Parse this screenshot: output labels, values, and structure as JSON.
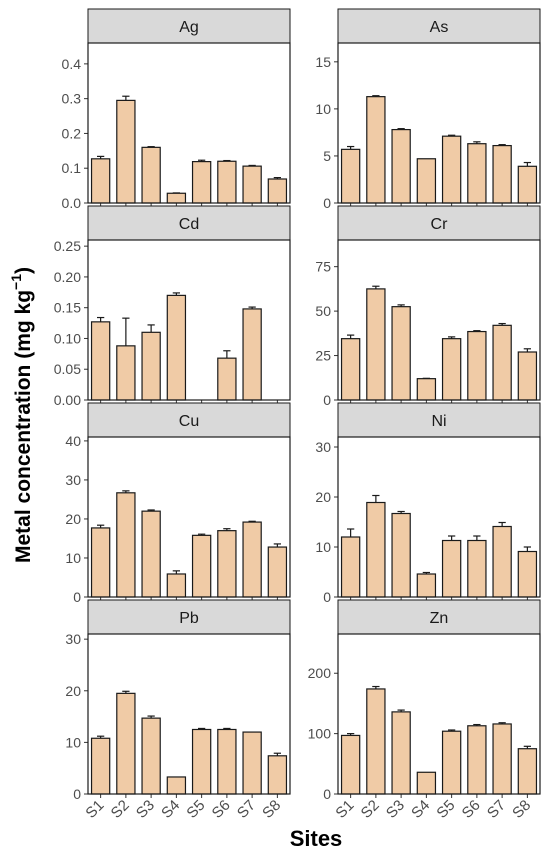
{
  "ylabel_main": "Metal concentration (mg kg",
  "ylabel_sup": "−1",
  "ylabel_close": ")",
  "xlabel": "Sites",
  "colors": {
    "bar": "#f0cba6",
    "strip": "#d9d9d9",
    "stroke": "#1a1a1a",
    "axis_text": "#4d4d4d"
  },
  "chart_data": [
    {
      "type": "bar",
      "title": "Ag",
      "categories": [
        "S1",
        "S2",
        "S3",
        "S4",
        "S5",
        "S6",
        "S7",
        "S8"
      ],
      "values": [
        0.127,
        0.295,
        0.16,
        0.028,
        0.119,
        0.12,
        0.106,
        0.069
      ],
      "errors": [
        0.007,
        0.012,
        0.002,
        0.001,
        0.004,
        0.002,
        0.002,
        0.004
      ],
      "ylim": [
        0,
        0.46
      ],
      "yticks": [
        "0.0",
        "0.1",
        "0.2",
        "0.3",
        "0.4"
      ],
      "ytick_values": [
        0,
        0.1,
        0.2,
        0.3,
        0.4
      ]
    },
    {
      "type": "bar",
      "title": "As",
      "categories": [
        "S1",
        "S2",
        "S3",
        "S4",
        "S5",
        "S6",
        "S7",
        "S8"
      ],
      "values": [
        5.7,
        11.3,
        7.8,
        4.7,
        7.1,
        6.3,
        6.1,
        3.9
      ],
      "errors": [
        0.3,
        0.1,
        0.1,
        0.0,
        0.1,
        0.2,
        0.1,
        0.4
      ],
      "ylim": [
        0,
        17
      ],
      "yticks": [
        "0",
        "5",
        "10",
        "15"
      ],
      "ytick_values": [
        0,
        5,
        10,
        15
      ]
    },
    {
      "type": "bar",
      "title": "Cd",
      "categories": [
        "S1",
        "S2",
        "S3",
        "S4",
        "S5",
        "S6",
        "S7",
        "S8"
      ],
      "values": [
        0.127,
        0.088,
        0.11,
        0.17,
        null,
        0.068,
        0.148,
        null
      ],
      "errors": [
        0.007,
        0.045,
        0.012,
        0.004,
        null,
        0.012,
        0.003,
        null
      ],
      "ylim": [
        0,
        0.26
      ],
      "yticks": [
        "0.00",
        "0.05",
        "0.10",
        "0.15",
        "0.20",
        "0.25"
      ],
      "ytick_values": [
        0,
        0.05,
        0.1,
        0.15,
        0.2,
        0.25
      ]
    },
    {
      "type": "bar",
      "title": "Cr",
      "categories": [
        "S1",
        "S2",
        "S3",
        "S4",
        "S5",
        "S6",
        "S7",
        "S8"
      ],
      "values": [
        34.5,
        62.5,
        52.5,
        12.0,
        34.5,
        38.5,
        42.0,
        27.0
      ],
      "errors": [
        2.0,
        1.5,
        1.0,
        0.2,
        1.0,
        0.5,
        1.0,
        1.8
      ],
      "ylim": [
        0,
        90
      ],
      "yticks": [
        "0",
        "25",
        "50",
        "75"
      ],
      "ytick_values": [
        0,
        25,
        50,
        75
      ]
    },
    {
      "type": "bar",
      "title": "Cu",
      "categories": [
        "S1",
        "S2",
        "S3",
        "S4",
        "S5",
        "S6",
        "S7",
        "S8"
      ],
      "values": [
        17.7,
        26.7,
        22.0,
        5.9,
        15.8,
        17.0,
        19.2,
        12.8
      ],
      "errors": [
        0.7,
        0.5,
        0.3,
        0.8,
        0.3,
        0.5,
        0.2,
        0.8
      ],
      "ylim": [
        0,
        41
      ],
      "yticks": [
        "0",
        "10",
        "20",
        "30",
        "40"
      ],
      "ytick_values": [
        0,
        10,
        20,
        30,
        40
      ]
    },
    {
      "type": "bar",
      "title": "Ni",
      "categories": [
        "S1",
        "S2",
        "S3",
        "S4",
        "S5",
        "S6",
        "S7",
        "S8"
      ],
      "values": [
        12.0,
        18.9,
        16.7,
        4.6,
        11.3,
        11.3,
        14.1,
        9.1
      ],
      "errors": [
        1.6,
        1.4,
        0.4,
        0.3,
        0.9,
        0.9,
        0.8,
        0.9
      ],
      "ylim": [
        0,
        32
      ],
      "yticks": [
        "0",
        "10",
        "20",
        "30"
      ],
      "ytick_values": [
        0,
        10,
        20,
        30
      ]
    },
    {
      "type": "bar",
      "title": "Pb",
      "categories": [
        "S1",
        "S2",
        "S3",
        "S4",
        "S5",
        "S6",
        "S7",
        "S8"
      ],
      "values": [
        10.8,
        19.5,
        14.7,
        3.3,
        12.5,
        12.5,
        12.0,
        7.4
      ],
      "errors": [
        0.4,
        0.4,
        0.4,
        0.0,
        0.2,
        0.2,
        0.0,
        0.5
      ],
      "ylim": [
        0,
        31
      ],
      "yticks": [
        "0",
        "10",
        "20",
        "30"
      ],
      "ytick_values": [
        0,
        10,
        20,
        30
      ]
    },
    {
      "type": "bar",
      "title": "Zn",
      "categories": [
        "S1",
        "S2",
        "S3",
        "S4",
        "S5",
        "S6",
        "S7",
        "S8"
      ],
      "values": [
        97,
        174,
        136,
        36,
        104,
        113,
        116,
        75
      ],
      "errors": [
        3,
        4,
        3,
        0,
        2,
        2,
        2,
        4
      ],
      "ylim": [
        0,
        265
      ],
      "yticks": [
        "0",
        "100",
        "200"
      ],
      "ytick_values": [
        0,
        100,
        200
      ]
    }
  ]
}
